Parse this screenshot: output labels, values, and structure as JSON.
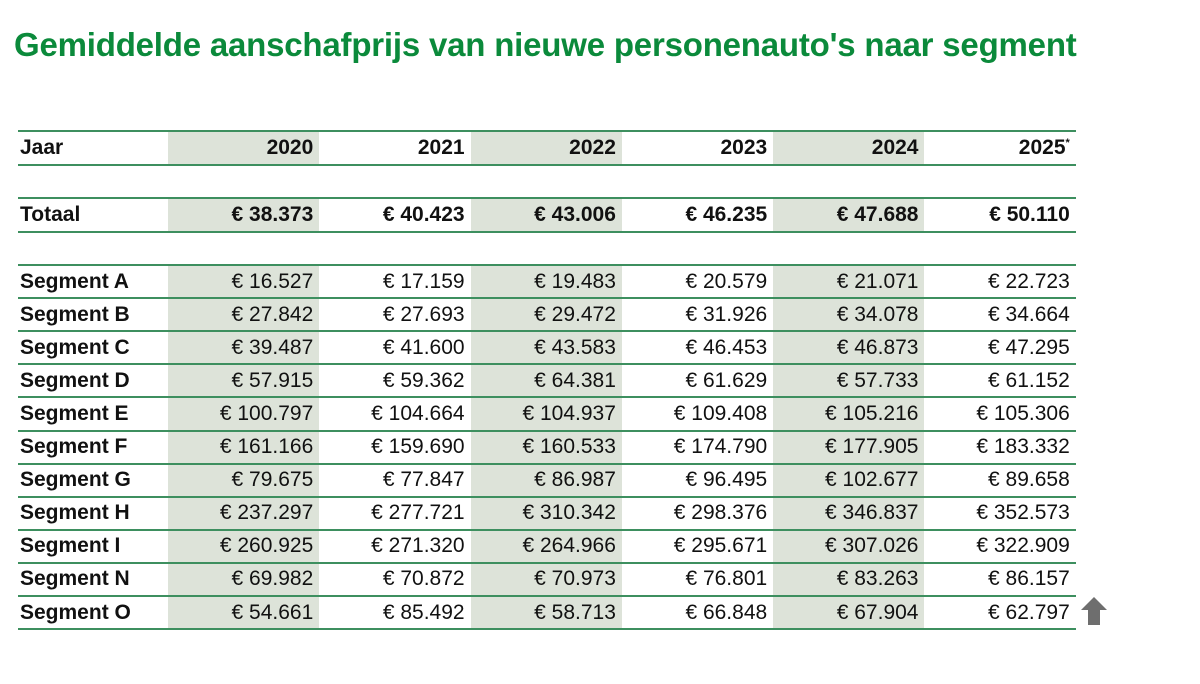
{
  "title": "Gemiddelde aanschafprijs van nieuwe personenauto's naar segment",
  "chart_data": {
    "type": "table",
    "title": "Gemiddelde aanschafprijs van nieuwe personenauto's naar segment",
    "header_label": "Jaar",
    "columns": [
      "2020",
      "2021",
      "2022",
      "2023",
      "2024",
      "2025"
    ],
    "column_note_marker": "*",
    "total": {
      "label": "Totaal",
      "values": [
        "€ 38.373",
        "€ 40.423",
        "€ 43.006",
        "€ 46.235",
        "€ 47.688",
        "€ 50.110"
      ]
    },
    "rows": [
      {
        "label": "Segment A",
        "values": [
          "€ 16.527",
          "€ 17.159",
          "€ 19.483",
          "€ 20.579",
          "€ 21.071",
          "€ 22.723"
        ]
      },
      {
        "label": "Segment B",
        "values": [
          "€ 27.842",
          "€ 27.693",
          "€ 29.472",
          "€ 31.926",
          "€ 34.078",
          "€ 34.664"
        ]
      },
      {
        "label": "Segment C",
        "values": [
          "€ 39.487",
          "€ 41.600",
          "€ 43.583",
          "€ 46.453",
          "€ 46.873",
          "€ 47.295"
        ]
      },
      {
        "label": "Segment D",
        "values": [
          "€ 57.915",
          "€ 59.362",
          "€ 64.381",
          "€ 61.629",
          "€ 57.733",
          "€ 61.152"
        ]
      },
      {
        "label": "Segment E",
        "values": [
          "€ 100.797",
          "€ 104.664",
          "€ 104.937",
          "€ 109.408",
          "€ 105.216",
          "€ 105.306"
        ]
      },
      {
        "label": "Segment F",
        "values": [
          "€ 161.166",
          "€ 159.690",
          "€ 160.533",
          "€ 174.790",
          "€ 177.905",
          "€ 183.332"
        ]
      },
      {
        "label": "Segment G",
        "values": [
          "€ 79.675",
          "€ 77.847",
          "€ 86.987",
          "€ 96.495",
          "€ 102.677",
          "€ 89.658"
        ]
      },
      {
        "label": "Segment H",
        "values": [
          "€ 237.297",
          "€ 277.721",
          "€ 310.342",
          "€ 298.376",
          "€ 346.837",
          "€ 352.573"
        ]
      },
      {
        "label": "Segment I",
        "values": [
          "€ 260.925",
          "€ 271.320",
          "€ 264.966",
          "€ 295.671",
          "€ 307.026",
          "€ 322.909"
        ]
      },
      {
        "label": "Segment N",
        "values": [
          "€ 69.982",
          "€ 70.872",
          "€ 70.973",
          "€ 76.801",
          "€ 83.263",
          "€ 86.157"
        ]
      },
      {
        "label": "Segment O",
        "values": [
          "€ 54.661",
          "€ 85.492",
          "€ 58.713",
          "€ 66.848",
          "€ 67.904",
          "€ 62.797"
        ]
      }
    ]
  },
  "colors": {
    "title": "#0b8a3b",
    "rule": "#3d8f5f",
    "shade": "#dde3d9",
    "arrow": "#6e6e6e"
  },
  "scroll_top_icon": "arrow-up-icon"
}
